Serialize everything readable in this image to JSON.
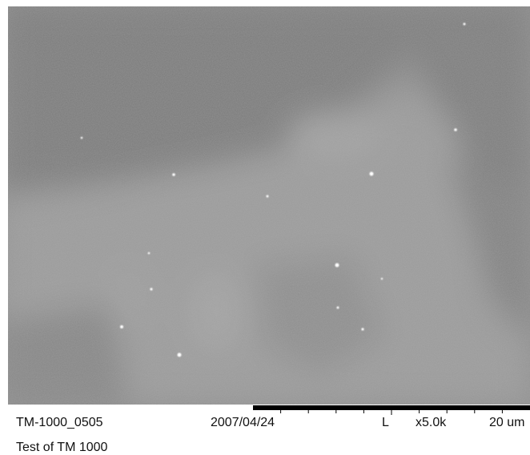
{
  "info": {
    "id": "TM-1000_0505",
    "date": "2007/04/24",
    "mode": "L",
    "magnification": "x5.0k",
    "scale": "20 um",
    "caption": "Test of TM 1000"
  }
}
